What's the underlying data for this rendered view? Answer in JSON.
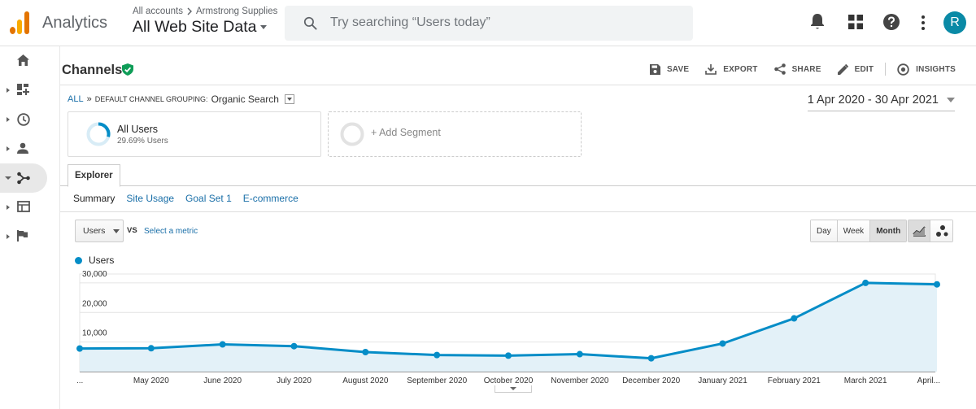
{
  "header": {
    "app_title": "Analytics",
    "account_crumb_root": "All accounts",
    "account_crumb_account": "Armstrong Supplies",
    "property_view": "All Web Site Data",
    "search_placeholder": "Try searching “Users today”",
    "avatar_letter": "R",
    "colors": {
      "logo_dark": "#e37400",
      "logo_light": "#f9ab00",
      "avatar": "#0a8aa6"
    },
    "icons": [
      "bell-icon",
      "apps-grid-icon",
      "help-icon",
      "more-vert-icon"
    ]
  },
  "sidebar": {
    "items": [
      {
        "icon": "home-icon"
      },
      {
        "icon": "customization-icon"
      },
      {
        "icon": "realtime-clock-icon"
      },
      {
        "icon": "audience-person-icon"
      },
      {
        "icon": "acquisition-icon",
        "active": true
      },
      {
        "icon": "behavior-icon"
      },
      {
        "icon": "conversions-flag-icon"
      }
    ]
  },
  "page": {
    "title": "Channels",
    "actions": {
      "save": "SAVE",
      "export": "EXPORT",
      "share": "SHARE",
      "edit": "EDIT",
      "insights": "INSIGHTS"
    },
    "breadcrumb": {
      "all": "ALL",
      "sep": "»",
      "grouping": "DEFAULT CHANNEL GROUPING:",
      "value": "Organic Search"
    },
    "date_range": "1 Apr 2020 - 30 Apr 2021",
    "segments": {
      "primary_name": "All Users",
      "primary_sub": "29.69% Users",
      "add_label": "+ Add Segment"
    },
    "explorer_tab": "Explorer",
    "subtabs": [
      "Summary",
      "Site Usage",
      "Goal Set 1",
      "E-commerce"
    ],
    "metric_select": "Users",
    "vs_label": "VS",
    "select_metric": "Select a metric",
    "granularity": [
      "Day",
      "Week",
      "Month"
    ],
    "granularity_selected": "Month",
    "legend_label": "Users",
    "accent_color": "#058dc7"
  },
  "chart_data": {
    "type": "area",
    "series": [
      {
        "name": "Users",
        "values": [
          7800,
          7900,
          9200,
          8600,
          6600,
          5600,
          5400,
          5900,
          4500,
          9500,
          18000,
          30000,
          29500
        ]
      }
    ],
    "x": [
      "...",
      "May 2020",
      "June 2020",
      "July 2020",
      "August 2020",
      "September 2020",
      "October 2020",
      "November 2020",
      "December 2020",
      "January 2021",
      "February 2021",
      "March 2021",
      "April..."
    ],
    "yticks": [
      "10,000",
      "20,000",
      "30,000"
    ],
    "ytick_values": [
      10000,
      20000,
      30000
    ],
    "ylim": [
      0,
      33000
    ],
    "grid": true,
    "legend": "top-left",
    "line_color": "#058dc7",
    "fill_color": "#e3f1f8"
  }
}
